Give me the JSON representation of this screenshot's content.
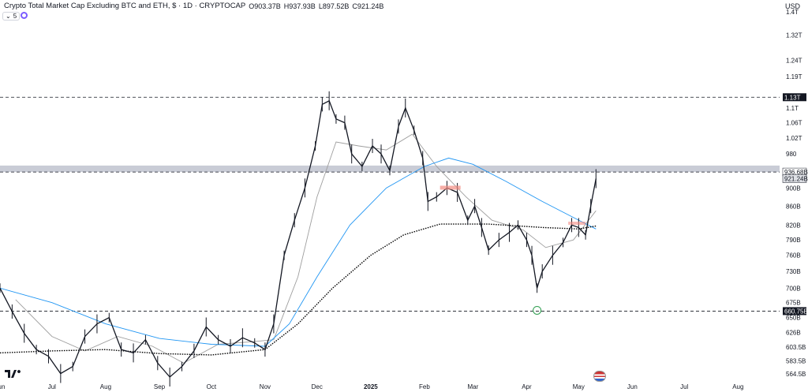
{
  "header": {
    "title": "Crypto Total Market Cap Excluding BTC and ETH, $ · 1D · CRYPTOCAP",
    "ohlc": [
      {
        "k": "O",
        "v": "903.37B"
      },
      {
        "k": "H",
        "v": "937.93B"
      },
      {
        "k": "L",
        "v": "897.52B"
      },
      {
        "k": "C",
        "v": "921.24B"
      }
    ],
    "interval_value": "5",
    "currency": "USD"
  },
  "colors": {
    "candle": "#131722",
    "ma_fast": "#000000",
    "ma_mid": "#9e9e9e",
    "ma_blue": "#2196f3",
    "ma_dotted": "#000000",
    "band": "#c9ccd6",
    "highlight_red": "#f28b82",
    "circle": "#2e9e4f"
  },
  "chart_data": {
    "type": "line",
    "title": "Crypto Total Market Cap Excluding BTC and ETH",
    "xlabel": "",
    "ylabel": "",
    "y_scale": "log",
    "ylim_billions": [
      550,
      1500
    ],
    "x_range": [
      "2024-06-01",
      "2025-08-25"
    ],
    "x_ticks": [
      {
        "label": "Jun",
        "date": "2024-06-01"
      },
      {
        "label": "Jul",
        "date": "2024-07-01"
      },
      {
        "label": "Aug",
        "date": "2024-08-01"
      },
      {
        "label": "Sep",
        "date": "2024-09-01"
      },
      {
        "label": "Oct",
        "date": "2024-10-01"
      },
      {
        "label": "Nov",
        "date": "2024-11-01"
      },
      {
        "label": "Dec",
        "date": "2024-12-01"
      },
      {
        "label": "2025",
        "date": "2025-01-01"
      },
      {
        "label": "Feb",
        "date": "2025-02-01"
      },
      {
        "label": "Mar",
        "date": "2025-03-01"
      },
      {
        "label": "Apr",
        "date": "2025-04-01"
      },
      {
        "label": "May",
        "date": "2025-05-01"
      },
      {
        "label": "Jun",
        "date": "2025-06-01"
      },
      {
        "label": "Jul",
        "date": "2025-07-01"
      },
      {
        "label": "Aug",
        "date": "2025-08-01"
      }
    ],
    "y_ticks": [
      {
        "label": "1.4T",
        "v": 1400
      },
      {
        "label": "1.32T",
        "v": 1320
      },
      {
        "label": "1.24T",
        "v": 1240
      },
      {
        "label": "1.19T",
        "v": 1190
      },
      {
        "label": "1.1T",
        "v": 1100
      },
      {
        "label": "1.06T",
        "v": 1060
      },
      {
        "label": "1.02T",
        "v": 1020
      },
      {
        "label": "980",
        "v": 980
      },
      {
        "label": "900B",
        "v": 900
      },
      {
        "label": "860B",
        "v": 860
      },
      {
        "label": "820B",
        "v": 820
      },
      {
        "label": "790B",
        "v": 790
      },
      {
        "label": "760B",
        "v": 760
      },
      {
        "label": "730B",
        "v": 730
      },
      {
        "label": "700B",
        "v": 700
      },
      {
        "label": "675B",
        "v": 675
      },
      {
        "label": "650B",
        "v": 650
      },
      {
        "label": "626B",
        "v": 626
      },
      {
        "label": "603.5B",
        "v": 603.5
      },
      {
        "label": "583.5B",
        "v": 583.5
      },
      {
        "label": "564.5B",
        "v": 564.5
      }
    ],
    "horizontal_lines": [
      {
        "label": "1.13T",
        "v": 1130,
        "style": "dashed"
      },
      {
        "label": "936.68B",
        "v": 936.68,
        "style": "dashed"
      },
      {
        "label": "660.75B",
        "v": 660.75,
        "style": "dashed"
      }
    ],
    "current_price_label": {
      "label": "921.24B",
      "v": 921.24
    },
    "band": {
      "from": 936.68,
      "to": 952
    },
    "price_series": {
      "name": "",
      "points": [
        [
          "2024-06-01",
          700
        ],
        [
          "2024-06-08",
          660
        ],
        [
          "2024-06-15",
          625
        ],
        [
          "2024-06-22",
          600
        ],
        [
          "2024-06-29",
          590
        ],
        [
          "2024-07-06",
          565
        ],
        [
          "2024-07-13",
          575
        ],
        [
          "2024-07-20",
          620
        ],
        [
          "2024-07-27",
          640
        ],
        [
          "2024-08-03",
          650
        ],
        [
          "2024-08-10",
          600
        ],
        [
          "2024-08-17",
          595
        ],
        [
          "2024-08-24",
          615
        ],
        [
          "2024-08-31",
          580
        ],
        [
          "2024-09-07",
          560
        ],
        [
          "2024-09-14",
          575
        ],
        [
          "2024-09-21",
          598
        ],
        [
          "2024-09-28",
          635
        ],
        [
          "2024-10-05",
          615
        ],
        [
          "2024-10-12",
          605
        ],
        [
          "2024-10-19",
          618
        ],
        [
          "2024-10-26",
          610
        ],
        [
          "2024-11-01",
          600
        ],
        [
          "2024-11-06",
          640
        ],
        [
          "2024-11-12",
          760
        ],
        [
          "2024-11-18",
          830
        ],
        [
          "2024-11-24",
          900
        ],
        [
          "2024-11-30",
          1000
        ],
        [
          "2024-12-04",
          1110
        ],
        [
          "2024-12-08",
          1120
        ],
        [
          "2024-12-12",
          1070
        ],
        [
          "2024-12-17",
          1060
        ],
        [
          "2024-12-21",
          980
        ],
        [
          "2024-12-27",
          950
        ],
        [
          "2025-01-02",
          1000
        ],
        [
          "2025-01-07",
          980
        ],
        [
          "2025-01-12",
          940
        ],
        [
          "2025-01-17",
          1050
        ],
        [
          "2025-01-21",
          1100
        ],
        [
          "2025-01-26",
          1040
        ],
        [
          "2025-01-31",
          970
        ],
        [
          "2025-02-03",
          870
        ],
        [
          "2025-02-08",
          880
        ],
        [
          "2025-02-14",
          900
        ],
        [
          "2025-02-20",
          890
        ],
        [
          "2025-02-26",
          830
        ],
        [
          "2025-03-02",
          860
        ],
        [
          "2025-03-06",
          815
        ],
        [
          "2025-03-10",
          770
        ],
        [
          "2025-03-16",
          790
        ],
        [
          "2025-03-22",
          805
        ],
        [
          "2025-03-27",
          820
        ],
        [
          "2025-04-01",
          790
        ],
        [
          "2025-04-04",
          760
        ],
        [
          "2025-04-07",
          700
        ],
        [
          "2025-04-10",
          730
        ],
        [
          "2025-04-16",
          760
        ],
        [
          "2025-04-22",
          785
        ],
        [
          "2025-04-27",
          820
        ],
        [
          "2025-05-01",
          815
        ],
        [
          "2025-05-05",
          800
        ],
        [
          "2025-05-08",
          860
        ],
        [
          "2025-05-11",
          921.24
        ]
      ]
    },
    "series": [
      {
        "name": "",
        "color": "#9e9e9e",
        "points": [
          [
            "2024-06-10",
            680
          ],
          [
            "2024-07-01",
            620
          ],
          [
            "2024-07-20",
            598
          ],
          [
            "2024-08-08",
            620
          ],
          [
            "2024-08-28",
            605
          ],
          [
            "2024-09-15",
            580
          ],
          [
            "2024-10-05",
            608
          ],
          [
            "2024-10-25",
            612
          ],
          [
            "2024-11-06",
            615
          ],
          [
            "2024-11-20",
            720
          ],
          [
            "2024-12-01",
            880
          ],
          [
            "2024-12-12",
            1010
          ],
          [
            "2024-12-25",
            1000
          ],
          [
            "2025-01-10",
            990
          ],
          [
            "2025-01-25",
            1030
          ],
          [
            "2025-02-08",
            950
          ],
          [
            "2025-02-25",
            880
          ],
          [
            "2025-03-12",
            830
          ],
          [
            "2025-03-30",
            810
          ],
          [
            "2025-04-12",
            775
          ],
          [
            "2025-04-28",
            790
          ],
          [
            "2025-05-11",
            850
          ]
        ]
      },
      {
        "name": "",
        "color": "#2196f3",
        "points": [
          [
            "2024-06-01",
            700
          ],
          [
            "2024-07-01",
            675
          ],
          [
            "2024-08-01",
            640
          ],
          [
            "2024-09-01",
            617
          ],
          [
            "2024-10-01",
            608
          ],
          [
            "2024-11-01",
            605
          ],
          [
            "2024-11-15",
            640
          ],
          [
            "2024-12-01",
            720
          ],
          [
            "2024-12-20",
            820
          ],
          [
            "2025-01-10",
            900
          ],
          [
            "2025-02-01",
            950
          ],
          [
            "2025-02-15",
            970
          ],
          [
            "2025-03-01",
            955
          ],
          [
            "2025-03-20",
            915
          ],
          [
            "2025-04-10",
            870
          ],
          [
            "2025-04-30",
            832
          ],
          [
            "2025-05-11",
            812
          ]
        ]
      },
      {
        "name": "",
        "color": "#000000",
        "points": [
          [
            "2024-06-01",
            595
          ],
          [
            "2024-07-01",
            598
          ],
          [
            "2024-08-01",
            600
          ],
          [
            "2024-09-01",
            594
          ],
          [
            "2024-10-01",
            592
          ],
          [
            "2024-11-01",
            600
          ],
          [
            "2024-11-20",
            640
          ],
          [
            "2024-12-10",
            700
          ],
          [
            "2025-01-01",
            760
          ],
          [
            "2025-01-20",
            800
          ],
          [
            "2025-02-10",
            822
          ],
          [
            "2025-03-10",
            822
          ],
          [
            "2025-04-10",
            815
          ],
          [
            "2025-05-01",
            812
          ],
          [
            "2025-05-11",
            818
          ]
        ]
      }
    ],
    "annotations": [
      {
        "type": "circle",
        "date": "2025-04-07",
        "v": 662
      }
    ]
  }
}
